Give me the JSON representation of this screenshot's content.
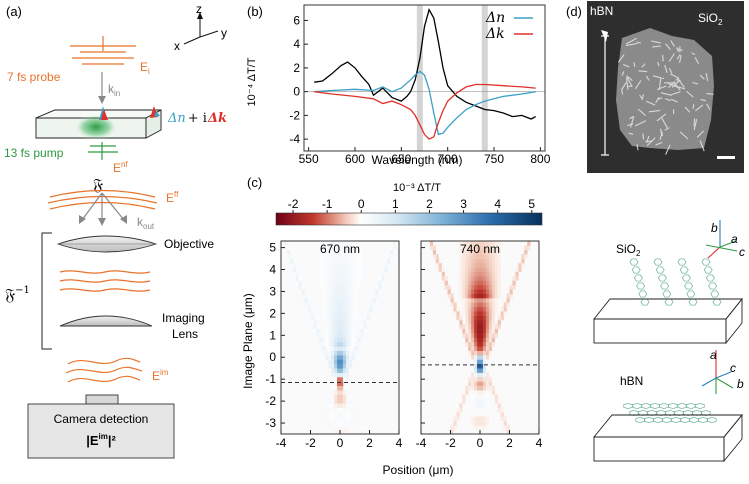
{
  "panel_labels": {
    "a": "(a)",
    "b": "(b)",
    "c": "(c)",
    "d": "(d)"
  },
  "panel_a": {
    "axis_z": "z",
    "axis_x": "x",
    "axis_y": "y",
    "probe_label": "7 fs probe",
    "e_i": "E",
    "e_i_sub": "i",
    "k_in": "k",
    "k_in_sub": "in",
    "delta_n": "Δn",
    "plus_i": "+ i",
    "delta_k": "Δk",
    "pump_label": "13 fs pump",
    "e_nf": "E",
    "e_nf_sup": "nf",
    "fourier": "𝔉",
    "e_ff": "E",
    "e_ff_sup": "ff",
    "k_out": "k",
    "k_out_sub": "out",
    "inverse_fourier": "𝔉",
    "inverse_sup": "−1",
    "objective": "Objective",
    "imaging_lens_1": "Imaging",
    "imaging_lens_2": "Lens",
    "e_im": "E",
    "e_im_sup": "im",
    "camera_1": "Camera detection",
    "camera_2_base": "|E",
    "camera_2_sup": "im",
    "camera_2_end": "|²"
  },
  "chart_data": [
    {
      "type": "line",
      "panel": "b",
      "title": "",
      "xlabel": "Wavelength (nm)",
      "ylabel": "10⁻⁴ ΔT/T",
      "xlim": [
        545,
        805
      ],
      "ylim": [
        -5,
        7.3
      ],
      "xticks": [
        550,
        600,
        650,
        700,
        750,
        800
      ],
      "yticks": [
        -4,
        -2,
        0,
        2,
        4,
        6
      ],
      "highlight_bands_nm": [
        670,
        740
      ],
      "legend": [
        {
          "name": "Δn",
          "color": "#3aa0c8"
        },
        {
          "name": "Δk",
          "color": "#e0302a"
        }
      ],
      "series": [
        {
          "name": "ΔT/T",
          "color": "#000000",
          "x": [
            556,
            565,
            575,
            585,
            592,
            600,
            607,
            615,
            620,
            630,
            640,
            650,
            656,
            660,
            665,
            670,
            675,
            680,
            685,
            690,
            695,
            700,
            710,
            720,
            730,
            740,
            750,
            760,
            770,
            780,
            790,
            795
          ],
          "y": [
            0.8,
            0.9,
            1.5,
            2.2,
            2.5,
            2.0,
            1.3,
            0.6,
            -0.3,
            0.3,
            -0.5,
            -0.8,
            -0.4,
            0.0,
            1.0,
            2.8,
            5.5,
            6.9,
            6.2,
            4.2,
            2.0,
            0.5,
            -0.4,
            -0.9,
            -1.2,
            -1.5,
            -1.6,
            -1.8,
            -2.1,
            -2.0,
            -2.3,
            -2.1
          ]
        },
        {
          "name": "Δn",
          "color": "#3aa0c8",
          "x": [
            556,
            575,
            600,
            620,
            630,
            640,
            650,
            660,
            665,
            670,
            675,
            680,
            685,
            690,
            695,
            700,
            710,
            720,
            730,
            740,
            760,
            780,
            795
          ],
          "y": [
            0.0,
            0.1,
            0.2,
            0.1,
            0.4,
            0.0,
            0.3,
            1.0,
            1.4,
            1.7,
            1.4,
            0.2,
            -1.8,
            -3.6,
            -3.5,
            -3.0,
            -2.2,
            -1.5,
            -1.1,
            -0.8,
            -0.4,
            -0.2,
            0.0
          ]
        },
        {
          "name": "Δk",
          "color": "#e0302a",
          "x": [
            556,
            575,
            600,
            620,
            630,
            640,
            650,
            660,
            665,
            670,
            675,
            680,
            685,
            690,
            695,
            700,
            710,
            720,
            730,
            740,
            760,
            780,
            795
          ],
          "y": [
            0.0,
            -0.2,
            -0.4,
            -0.6,
            -1.0,
            -0.8,
            -1.1,
            -1.5,
            -2.0,
            -2.8,
            -3.6,
            -4.0,
            -3.8,
            -2.6,
            -1.6,
            -0.8,
            -0.1,
            0.4,
            0.6,
            0.6,
            0.5,
            0.4,
            0.3
          ]
        }
      ]
    },
    {
      "type": "heatmap",
      "panel": "c",
      "colorbar_label": "10⁻³ ΔT/T",
      "colorbar_ticks": [
        -2,
        -1,
        0,
        1,
        2,
        3,
        4,
        5
      ],
      "colorbar_range": [
        -2.5,
        5.3
      ],
      "xlabel": "Position (μm)",
      "ylabel": "Image Plane (μm)",
      "xlim": [
        -4,
        4
      ],
      "ylim": [
        -3.5,
        5.3
      ],
      "xticks": [
        -4,
        -2,
        0,
        2,
        4
      ],
      "yticks": [
        -3,
        -2,
        -1,
        0,
        1,
        2,
        3,
        4,
        5
      ],
      "maps": [
        {
          "title": "670 nm",
          "dashed_line_um": -1.15,
          "focus_value": -2.2
        },
        {
          "title": "740 nm",
          "dashed_line_um": -0.35,
          "focus_value": 3.8
        }
      ]
    }
  ],
  "panel_d": {
    "hbn_label": "hBN",
    "sio2_label_base": "SiO",
    "sio2_label_sub": "2",
    "sio2_axes_title_base": "SiO",
    "sio2_axes_title_sub": "2",
    "hbn_axes_title": "hBN",
    "axis_a": "a",
    "axis_b": "b",
    "axis_c": "c"
  }
}
